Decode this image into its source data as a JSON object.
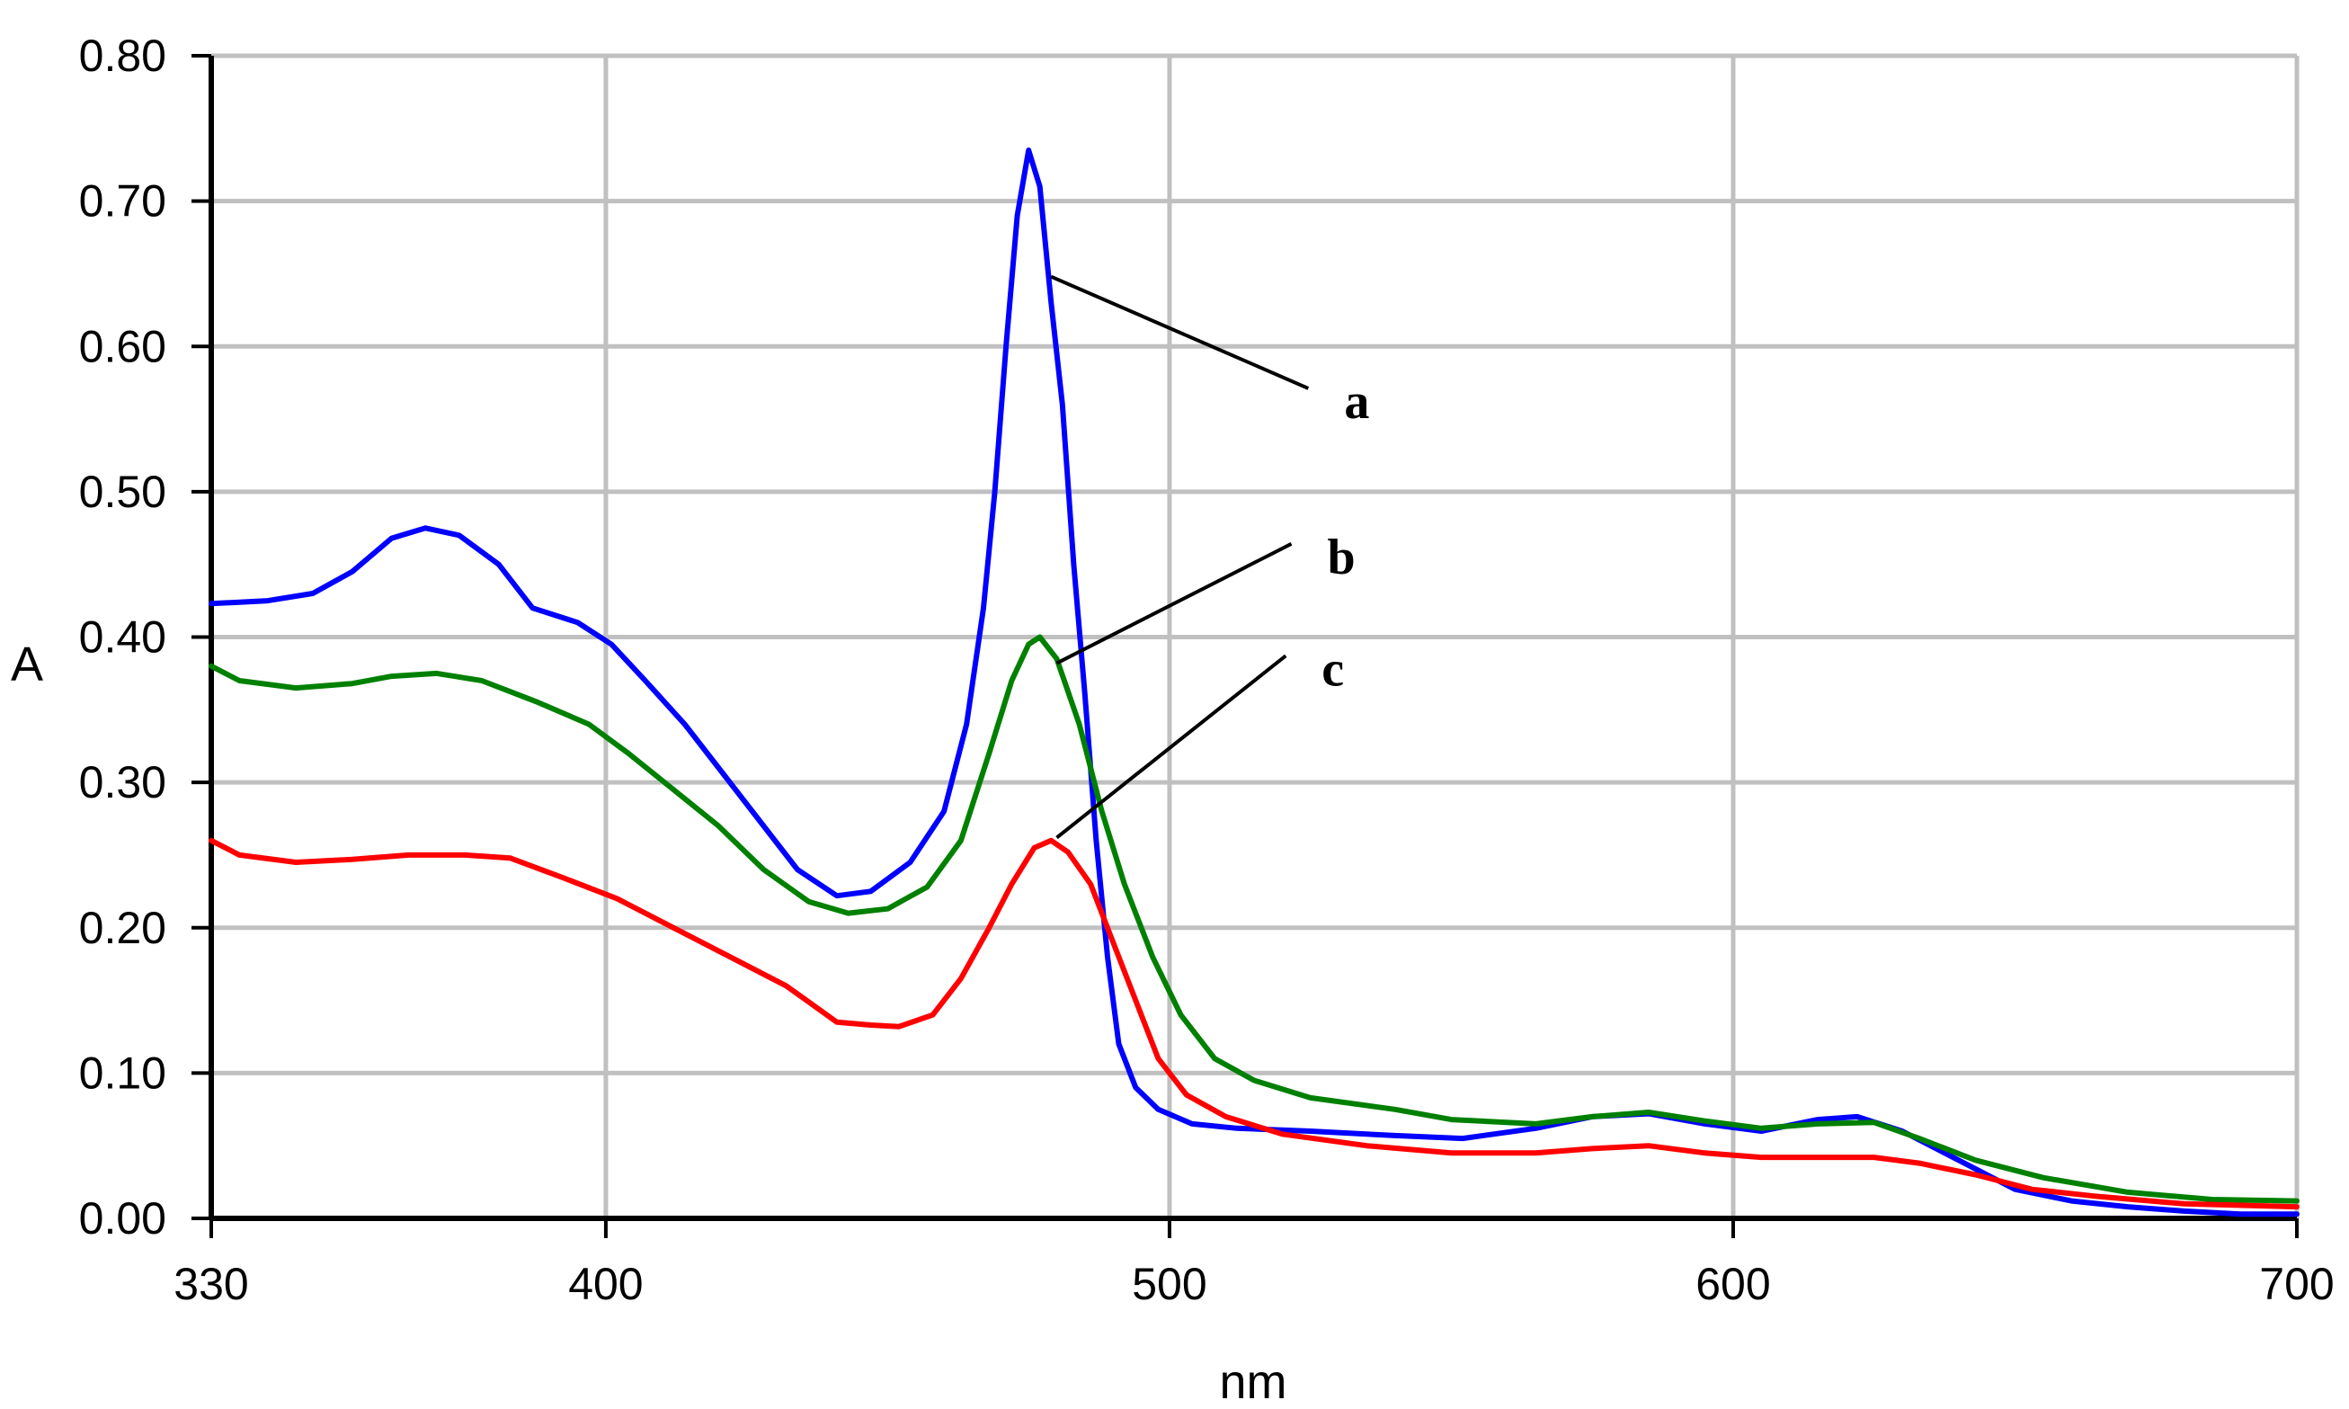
{
  "chart_data": {
    "type": "line",
    "title": "",
    "xlabel": "nm",
    "ylabel": "A",
    "xlim": [
      330,
      700
    ],
    "ylim": [
      0.0,
      0.8
    ],
    "x_ticks": [
      330,
      400,
      500,
      600,
      700
    ],
    "x_tick_labels": [
      "330",
      "400",
      "500",
      "600",
      "700"
    ],
    "y_ticks": [
      0.0,
      0.1,
      0.2,
      0.3,
      0.4,
      0.5,
      0.6,
      0.7,
      0.8
    ],
    "y_tick_labels": [
      "0.00",
      "0.10",
      "0.20",
      "0.30",
      "0.40",
      "0.50",
      "0.60",
      "0.70",
      "0.80"
    ],
    "grid": true,
    "legend": "none",
    "colors": {
      "a": "#0000ff",
      "b": "#008000",
      "c": "#ff0000",
      "grid": "#c0c0c0"
    },
    "series": [
      {
        "name": "a",
        "color": "#0000ff",
        "points": [
          [
            330,
            0.423
          ],
          [
            340,
            0.425
          ],
          [
            348,
            0.43
          ],
          [
            355,
            0.445
          ],
          [
            362,
            0.468
          ],
          [
            368,
            0.475
          ],
          [
            374,
            0.47
          ],
          [
            381,
            0.45
          ],
          [
            387,
            0.42
          ],
          [
            395,
            0.41
          ],
          [
            401,
            0.395
          ],
          [
            407,
            0.37
          ],
          [
            414,
            0.34
          ],
          [
            421,
            0.305
          ],
          [
            428,
            0.27
          ],
          [
            434,
            0.24
          ],
          [
            441,
            0.222
          ],
          [
            447,
            0.225
          ],
          [
            454,
            0.245
          ],
          [
            460,
            0.28
          ],
          [
            464,
            0.34
          ],
          [
            467,
            0.42
          ],
          [
            469,
            0.5
          ],
          [
            471,
            0.6
          ],
          [
            473,
            0.69
          ],
          [
            475,
            0.735
          ],
          [
            477,
            0.71
          ],
          [
            479,
            0.63
          ],
          [
            481,
            0.56
          ],
          [
            483,
            0.45
          ],
          [
            485,
            0.36
          ],
          [
            487,
            0.26
          ],
          [
            489,
            0.18
          ],
          [
            491,
            0.12
          ],
          [
            494,
            0.09
          ],
          [
            498,
            0.075
          ],
          [
            504,
            0.065
          ],
          [
            512,
            0.062
          ],
          [
            525,
            0.06
          ],
          [
            540,
            0.057
          ],
          [
            552,
            0.055
          ],
          [
            565,
            0.062
          ],
          [
            575,
            0.07
          ],
          [
            585,
            0.072
          ],
          [
            595,
            0.065
          ],
          [
            605,
            0.06
          ],
          [
            615,
            0.068
          ],
          [
            622,
            0.07
          ],
          [
            630,
            0.06
          ],
          [
            640,
            0.04
          ],
          [
            650,
            0.02
          ],
          [
            660,
            0.012
          ],
          [
            670,
            0.008
          ],
          [
            680,
            0.005
          ],
          [
            690,
            0.003
          ],
          [
            700,
            0.003
          ]
        ]
      },
      {
        "name": "b",
        "color": "#008000",
        "points": [
          [
            330,
            0.38
          ],
          [
            335,
            0.37
          ],
          [
            345,
            0.365
          ],
          [
            355,
            0.368
          ],
          [
            362,
            0.373
          ],
          [
            370,
            0.375
          ],
          [
            378,
            0.37
          ],
          [
            388,
            0.355
          ],
          [
            397,
            0.34
          ],
          [
            404,
            0.32
          ],
          [
            412,
            0.295
          ],
          [
            420,
            0.27
          ],
          [
            428,
            0.24
          ],
          [
            436,
            0.218
          ],
          [
            443,
            0.21
          ],
          [
            450,
            0.213
          ],
          [
            457,
            0.228
          ],
          [
            463,
            0.26
          ],
          [
            468,
            0.32
          ],
          [
            472,
            0.37
          ],
          [
            475,
            0.395
          ],
          [
            477,
            0.4
          ],
          [
            480,
            0.385
          ],
          [
            484,
            0.34
          ],
          [
            488,
            0.28
          ],
          [
            492,
            0.23
          ],
          [
            497,
            0.18
          ],
          [
            502,
            0.14
          ],
          [
            508,
            0.11
          ],
          [
            515,
            0.095
          ],
          [
            525,
            0.083
          ],
          [
            540,
            0.075
          ],
          [
            550,
            0.068
          ],
          [
            565,
            0.065
          ],
          [
            575,
            0.07
          ],
          [
            585,
            0.073
          ],
          [
            595,
            0.067
          ],
          [
            605,
            0.062
          ],
          [
            615,
            0.065
          ],
          [
            625,
            0.066
          ],
          [
            633,
            0.055
          ],
          [
            643,
            0.04
          ],
          [
            655,
            0.028
          ],
          [
            670,
            0.018
          ],
          [
            685,
            0.013
          ],
          [
            700,
            0.012
          ]
        ]
      },
      {
        "name": "c",
        "color": "#ff0000",
        "points": [
          [
            330,
            0.26
          ],
          [
            335,
            0.25
          ],
          [
            345,
            0.245
          ],
          [
            355,
            0.247
          ],
          [
            365,
            0.25
          ],
          [
            375,
            0.25
          ],
          [
            383,
            0.248
          ],
          [
            392,
            0.235
          ],
          [
            402,
            0.22
          ],
          [
            412,
            0.2
          ],
          [
            422,
            0.18
          ],
          [
            432,
            0.16
          ],
          [
            441,
            0.135
          ],
          [
            447,
            0.133
          ],
          [
            452,
            0.132
          ],
          [
            458,
            0.14
          ],
          [
            463,
            0.165
          ],
          [
            468,
            0.2
          ],
          [
            472,
            0.23
          ],
          [
            476,
            0.255
          ],
          [
            479,
            0.26
          ],
          [
            482,
            0.252
          ],
          [
            486,
            0.23
          ],
          [
            490,
            0.19
          ],
          [
            494,
            0.15
          ],
          [
            498,
            0.11
          ],
          [
            503,
            0.085
          ],
          [
            510,
            0.07
          ],
          [
            520,
            0.058
          ],
          [
            535,
            0.05
          ],
          [
            550,
            0.045
          ],
          [
            565,
            0.045
          ],
          [
            575,
            0.048
          ],
          [
            585,
            0.05
          ],
          [
            595,
            0.045
          ],
          [
            605,
            0.042
          ],
          [
            615,
            0.042
          ],
          [
            625,
            0.042
          ],
          [
            633,
            0.038
          ],
          [
            643,
            0.03
          ],
          [
            653,
            0.02
          ],
          [
            665,
            0.015
          ],
          [
            680,
            0.01
          ],
          [
            700,
            0.008
          ]
        ]
      }
    ],
    "annotations": [
      {
        "text": "a",
        "series": "a",
        "anchor": [
          479,
          0.648
        ],
        "label_pos": [
          531,
          0.56
        ]
      },
      {
        "text": "b",
        "series": "b",
        "anchor": [
          480,
          0.382
        ],
        "label_pos": [
          528,
          0.453
        ]
      },
      {
        "text": "c",
        "series": "c",
        "anchor": [
          480,
          0.262
        ],
        "label_pos": [
          527,
          0.376
        ]
      }
    ]
  }
}
